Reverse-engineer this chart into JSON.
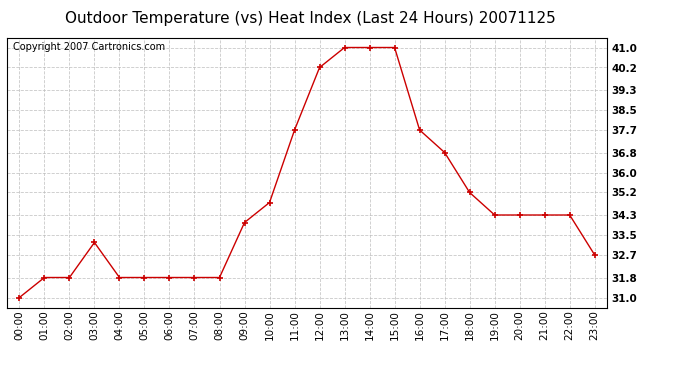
{
  "title": "Outdoor Temperature (vs) Heat Index (Last 24 Hours) 20071125",
  "copyright_text": "Copyright 2007 Cartronics.com",
  "x_labels": [
    "00:00",
    "01:00",
    "02:00",
    "03:00",
    "04:00",
    "05:00",
    "06:00",
    "07:00",
    "08:00",
    "09:00",
    "10:00",
    "11:00",
    "12:00",
    "13:00",
    "14:00",
    "15:00",
    "16:00",
    "17:00",
    "18:00",
    "19:00",
    "20:00",
    "21:00",
    "22:00",
    "23:00"
  ],
  "y_values": [
    31.0,
    31.8,
    31.8,
    33.2,
    31.8,
    31.8,
    31.8,
    31.8,
    31.8,
    34.0,
    34.8,
    37.7,
    40.2,
    41.0,
    41.0,
    41.0,
    37.7,
    36.8,
    35.2,
    34.3,
    34.3,
    34.3,
    34.3,
    32.7
  ],
  "y_ticks": [
    31.0,
    31.8,
    32.7,
    33.5,
    34.3,
    35.2,
    36.0,
    36.8,
    37.7,
    38.5,
    39.3,
    40.2,
    41.0
  ],
  "ylim": [
    30.6,
    41.4
  ],
  "line_color": "#cc0000",
  "marker": "+",
  "marker_size": 5,
  "background_color": "#ffffff",
  "grid_color": "#bbbbbb",
  "title_fontsize": 11,
  "copyright_fontsize": 7,
  "tick_fontsize": 7.5
}
